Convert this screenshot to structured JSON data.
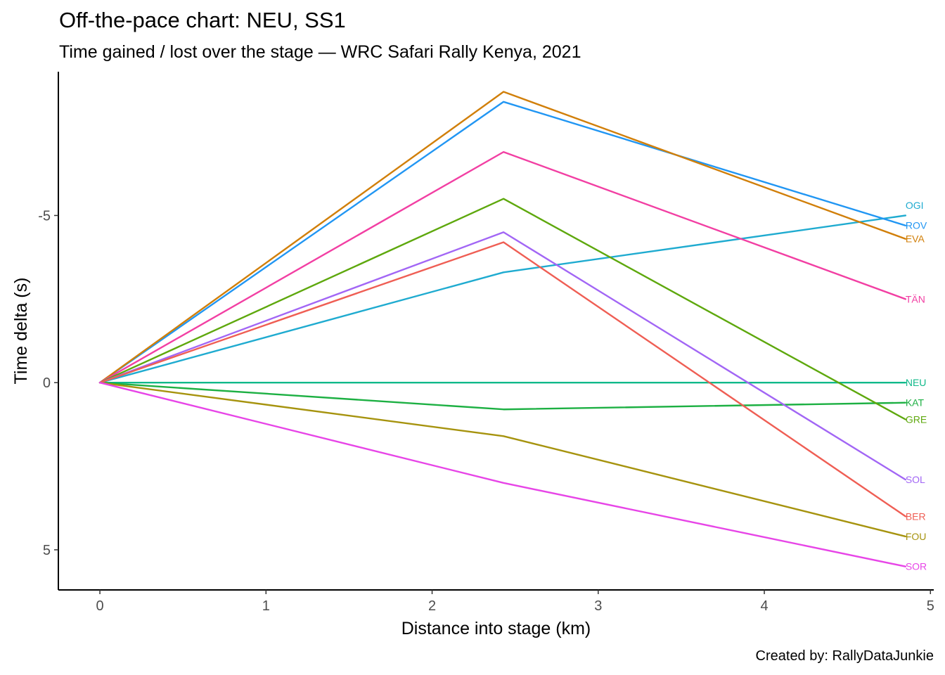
{
  "chart_data": {
    "type": "line",
    "title": "Off-the-pace chart: NEU, SS1",
    "subtitle": "Time gained / lost over the stage — WRC Safari Rally Kenya, 2021",
    "caption": "Created by: RallyDataJunkie",
    "xlabel": "Distance into stage (km)",
    "ylabel": "Time delta (s)",
    "xlim": [
      -0.25,
      5.02
    ],
    "ylim": [
      6.2,
      -9.3
    ],
    "y_reversed": true,
    "xticks": [
      0,
      1,
      2,
      3,
      4,
      5
    ],
    "yticks": [
      -5,
      0,
      5
    ],
    "ytick_labels": [
      "-5",
      "0",
      "5"
    ],
    "grid": false,
    "x": [
      0,
      2.43,
      4.85
    ],
    "series": [
      {
        "name": "OGI",
        "color": "#1FABD0",
        "values": [
          0,
          -3.3,
          -5.0
        ]
      },
      {
        "name": "ROV",
        "color": "#2196F3",
        "values": [
          0,
          -8.4,
          -4.7
        ]
      },
      {
        "name": "EVA",
        "color": "#D17F09",
        "values": [
          0,
          -8.7,
          -4.3
        ]
      },
      {
        "name": "TÄN",
        "color": "#F23FA3",
        "values": [
          0,
          -6.9,
          -2.5
        ]
      },
      {
        "name": "NEU",
        "color": "#10B98A",
        "values": [
          0,
          0,
          0
        ]
      },
      {
        "name": "KAT",
        "color": "#1DB043",
        "values": [
          0,
          0.8,
          0.6
        ]
      },
      {
        "name": "GRE",
        "color": "#5EA80D",
        "values": [
          0,
          -5.5,
          1.1
        ]
      },
      {
        "name": "SOL",
        "color": "#A266F5",
        "values": [
          0,
          -4.5,
          2.9
        ]
      },
      {
        "name": "BER",
        "color": "#EF5E54",
        "values": [
          0,
          -4.2,
          4.0
        ]
      },
      {
        "name": "FOU",
        "color": "#A6930E",
        "values": [
          0,
          1.6,
          4.6
        ]
      },
      {
        "name": "SOR",
        "color": "#E745E7",
        "values": [
          0,
          3.0,
          5.5
        ]
      }
    ],
    "label_nudge": {
      "OGI": -0.3,
      "ROV": 0,
      "EVA": 0
    }
  }
}
